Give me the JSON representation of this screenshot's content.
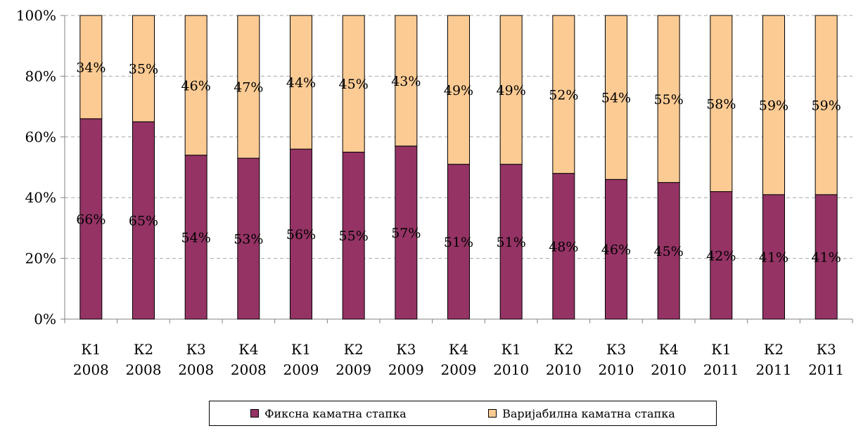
{
  "chart_data": {
    "type": "bar",
    "stacked": true,
    "percent_stacked": true,
    "categories": [
      [
        "К1",
        "2008"
      ],
      [
        "К2",
        "2008"
      ],
      [
        "К3",
        "2008"
      ],
      [
        "К4",
        "2008"
      ],
      [
        "К1",
        "2009"
      ],
      [
        "К2",
        "2009"
      ],
      [
        "К3",
        "2009"
      ],
      [
        "К4",
        "2009"
      ],
      [
        "К1",
        "2010"
      ],
      [
        "К2",
        "2010"
      ],
      [
        "К3",
        "2010"
      ],
      [
        "К4",
        "2010"
      ],
      [
        "К1",
        "2011"
      ],
      [
        "К2",
        "2011"
      ],
      [
        "К3",
        "2011"
      ]
    ],
    "series": [
      {
        "name": "Фиксна каматна стапка",
        "color": "#953365",
        "values": [
          66,
          65,
          54,
          53,
          56,
          55,
          57,
          51,
          51,
          48,
          46,
          45,
          42,
          41,
          41
        ]
      },
      {
        "name": "Варијабилна каматна стапка",
        "color": "#FCCB94",
        "values": [
          34,
          35,
          46,
          47,
          44,
          45,
          43,
          49,
          49,
          52,
          54,
          55,
          58,
          59,
          59
        ]
      }
    ],
    "y_ticks": [
      "0%",
      "20%",
      "40%",
      "60%",
      "80%",
      "100%"
    ],
    "ylim": [
      0,
      100
    ],
    "grid": true,
    "legend_position": "bottom",
    "title": "",
    "xlabel": "",
    "ylabel": ""
  }
}
